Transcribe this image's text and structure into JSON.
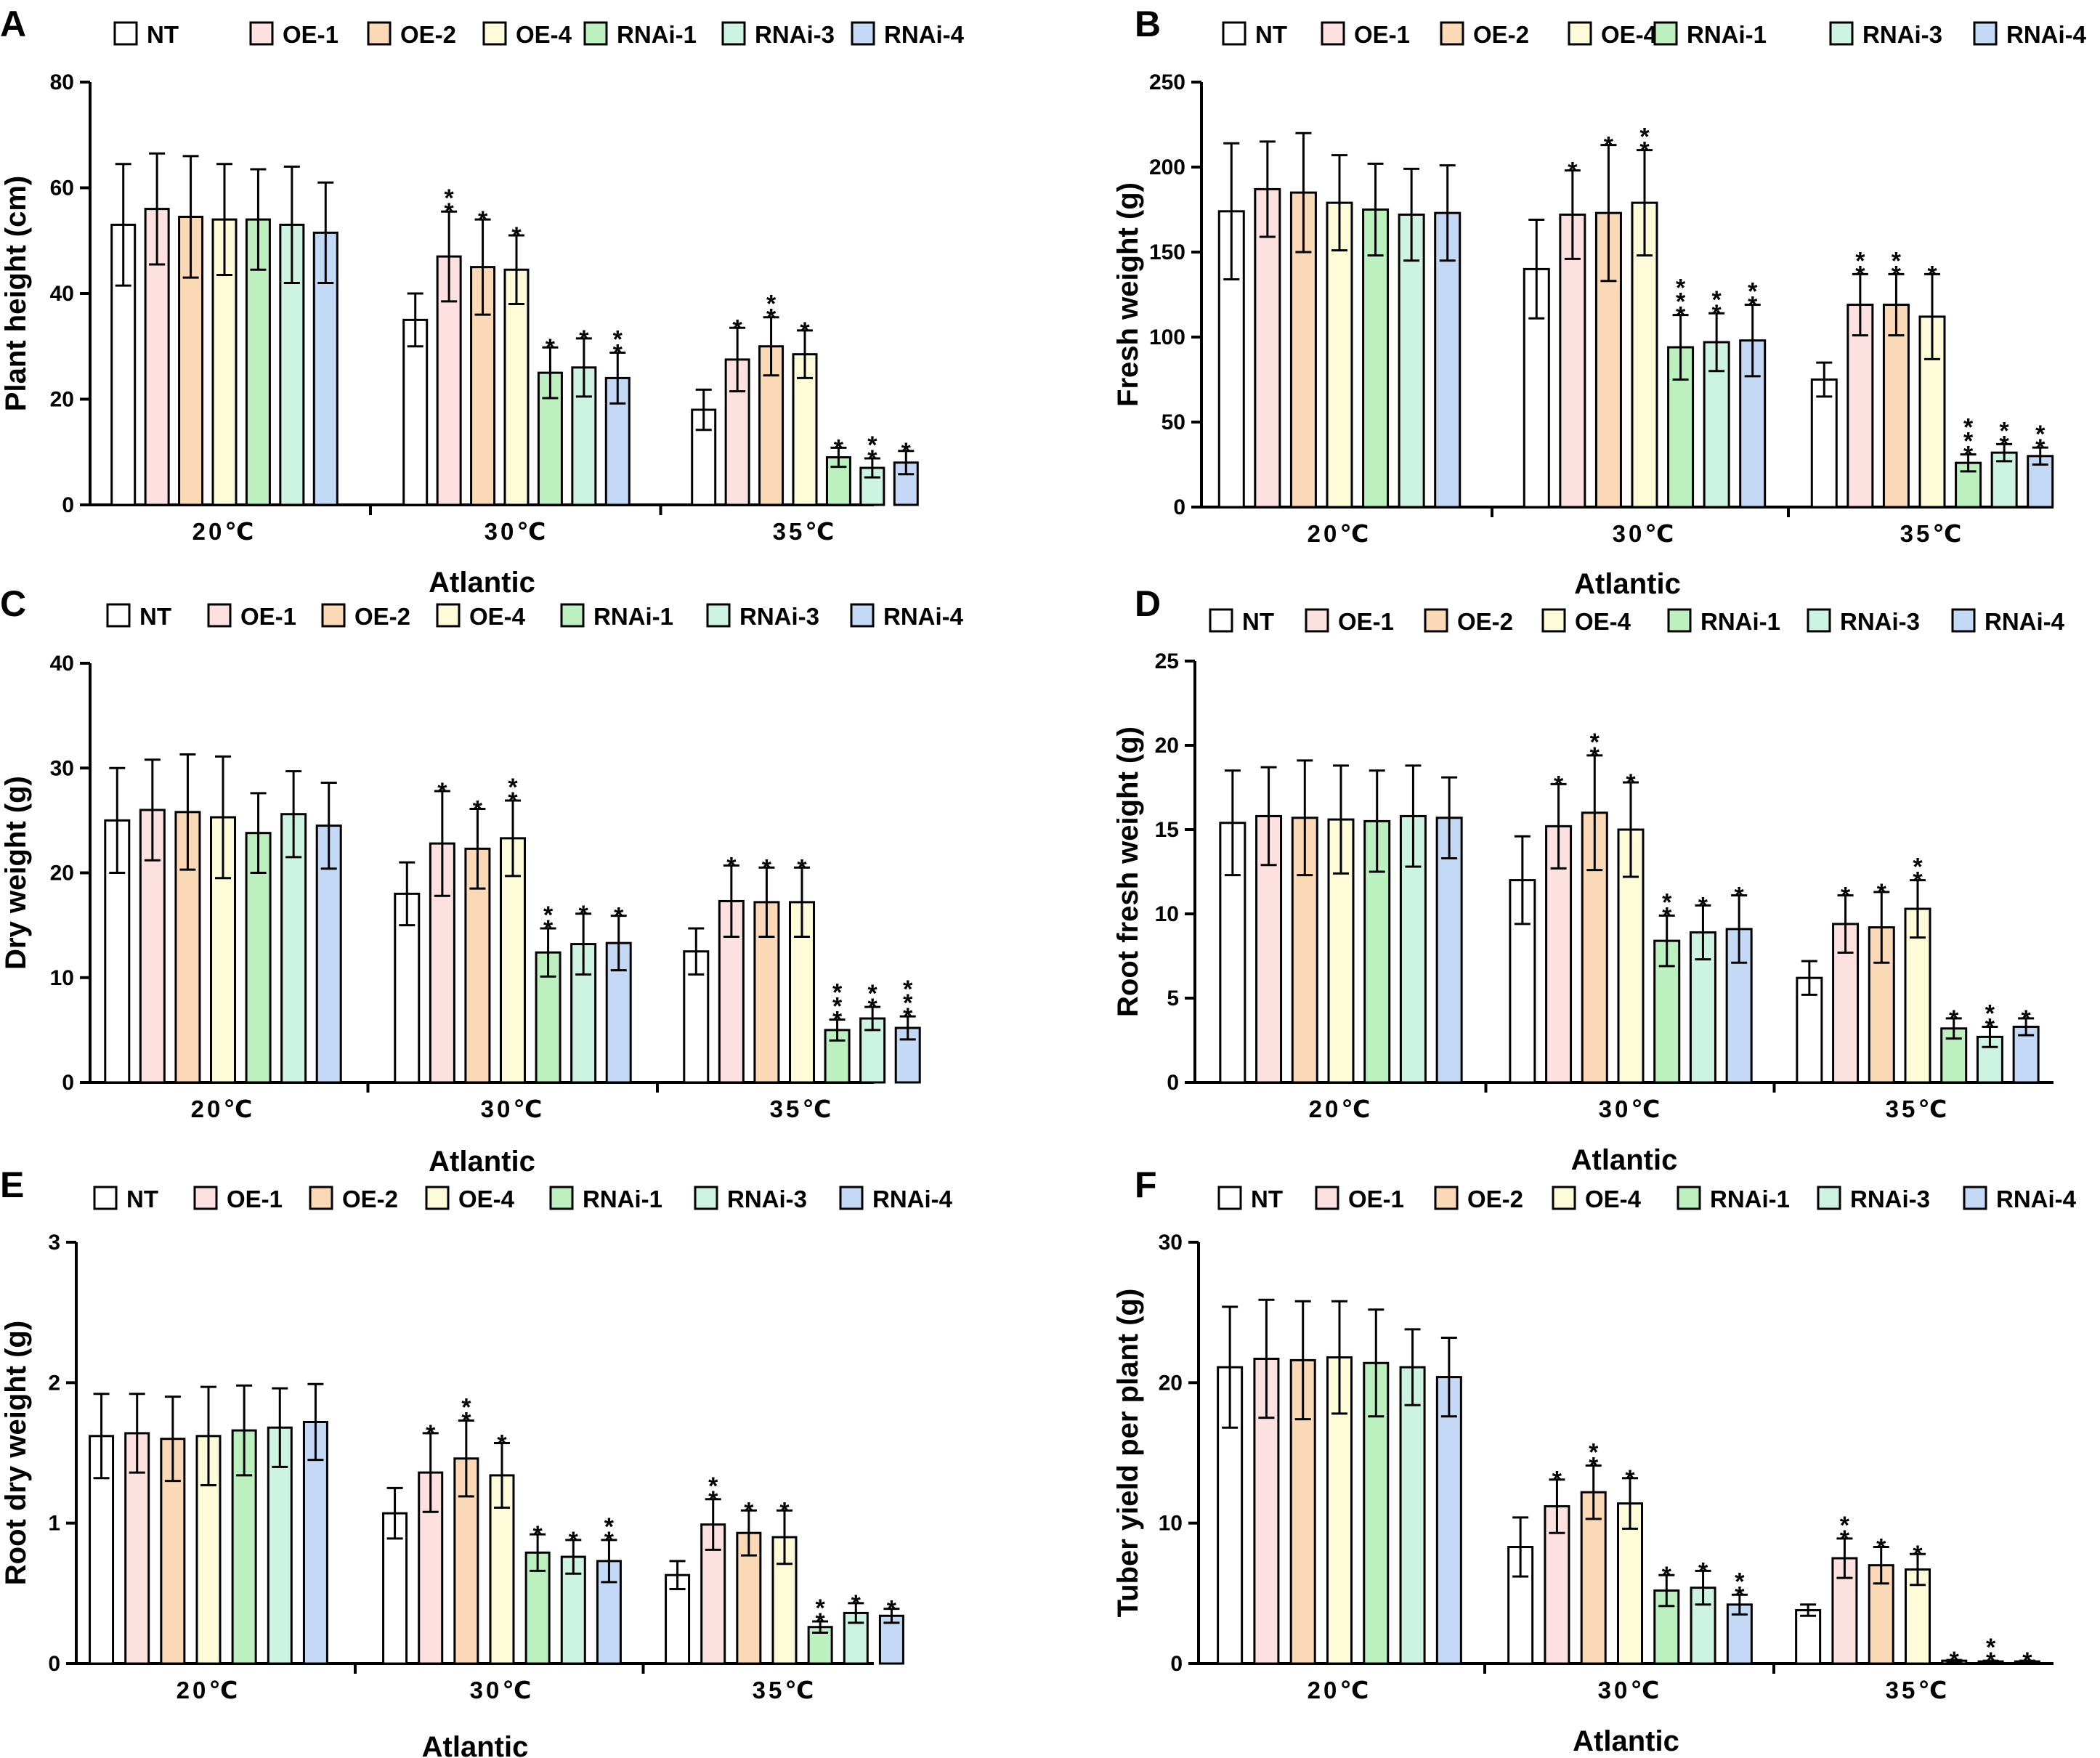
{
  "figure": {
    "groups": [
      "NT",
      "OE-1",
      "OE-2",
      "OE-4",
      "RNAi-1",
      "RNAi-3",
      "RNAi-4"
    ],
    "group_colors": [
      "#ffffff",
      "#fde0e0",
      "#fcd9b6",
      "#fdfbd8",
      "#bdf0bf",
      "#cdf3e3",
      "#c3d9f5"
    ]
  },
  "chart_data": [
    {
      "type": "bar",
      "panel": "A",
      "title": "",
      "xlabel": "Atlantic",
      "ylabel": "Plant height (cm)",
      "categories": [
        "20℃",
        "30℃",
        "35℃"
      ],
      "ylim": [
        0,
        80
      ],
      "yticks": [
        "0",
        "20",
        "40",
        "60",
        "80"
      ],
      "series": [
        {
          "name": "NT",
          "values": [
            53,
            35,
            18
          ],
          "errors": [
            11.5,
            5,
            3.8
          ],
          "stars": [
            "",
            "",
            ""
          ]
        },
        {
          "name": "OE-1",
          "values": [
            56,
            47,
            27.5
          ],
          "errors": [
            10.5,
            8.5,
            6
          ],
          "stars": [
            "",
            "**",
            "*"
          ]
        },
        {
          "name": "OE-2",
          "values": [
            54.5,
            45,
            30
          ],
          "errors": [
            11.5,
            9,
            5.5
          ],
          "stars": [
            "",
            "*",
            "**"
          ]
        },
        {
          "name": "OE-4",
          "values": [
            54,
            44.5,
            28.5
          ],
          "errors": [
            10.5,
            6.5,
            4.5
          ],
          "stars": [
            "",
            "*",
            "*"
          ]
        },
        {
          "name": "RNAi-1",
          "values": [
            54,
            25,
            9
          ],
          "errors": [
            9.5,
            4.8,
            1.8
          ],
          "stars": [
            "",
            "*",
            "*"
          ]
        },
        {
          "name": "RNAi-3",
          "values": [
            53,
            26,
            7
          ],
          "errors": [
            11,
            5.5,
            1.8
          ],
          "stars": [
            "",
            "*",
            "**"
          ]
        },
        {
          "name": "RNAi-4",
          "values": [
            51.5,
            24,
            8
          ],
          "errors": [
            9.5,
            4.8,
            2.2
          ],
          "stars": [
            "",
            "**",
            "*"
          ]
        }
      ]
    },
    {
      "type": "bar",
      "panel": "B",
      "title": "",
      "xlabel": "Atlantic",
      "ylabel": "Fresh weight (g)",
      "categories": [
        "20℃",
        "30℃",
        "35℃"
      ],
      "ylim": [
        0,
        250
      ],
      "yticks": [
        "0",
        "50",
        "100",
        "150",
        "200",
        "250"
      ],
      "series": [
        {
          "name": "NT",
          "values": [
            174,
            140,
            75
          ],
          "errors": [
            40,
            29,
            10
          ],
          "stars": [
            "",
            "",
            ""
          ]
        },
        {
          "name": "OE-1",
          "values": [
            187,
            172,
            119
          ],
          "errors": [
            28,
            26,
            18
          ],
          "stars": [
            "",
            "*",
            "**"
          ]
        },
        {
          "name": "OE-2",
          "values": [
            185,
            173,
            119
          ],
          "errors": [
            35,
            40,
            18
          ],
          "stars": [
            "",
            "*",
            "**"
          ]
        },
        {
          "name": "OE-4",
          "values": [
            179,
            179,
            112
          ],
          "errors": [
            28,
            31,
            25
          ],
          "stars": [
            "",
            "**",
            "*"
          ]
        },
        {
          "name": "RNAi-1",
          "values": [
            175,
            94,
            26
          ],
          "errors": [
            27,
            19,
            5
          ],
          "stars": [
            "",
            "***",
            "***"
          ]
        },
        {
          "name": "RNAi-3",
          "values": [
            172,
            97,
            32
          ],
          "errors": [
            27,
            17,
            5
          ],
          "stars": [
            "",
            "**",
            "**"
          ]
        },
        {
          "name": "RNAi-4",
          "values": [
            173,
            98,
            30
          ],
          "errors": [
            28,
            21,
            5
          ],
          "stars": [
            "",
            "**",
            "**"
          ]
        }
      ]
    },
    {
      "type": "bar",
      "panel": "C",
      "title": "",
      "xlabel": "Atlantic",
      "ylabel": "Dry weight (g)",
      "categories": [
        "20℃",
        "30℃",
        "35℃"
      ],
      "ylim": [
        0,
        40
      ],
      "yticks": [
        "0",
        "10",
        "20",
        "30",
        "40"
      ],
      "series": [
        {
          "name": "NT",
          "values": [
            25,
            18,
            12.5
          ],
          "errors": [
            5,
            3,
            2.2
          ],
          "stars": [
            "",
            "",
            ""
          ]
        },
        {
          "name": "OE-1",
          "values": [
            26,
            22.8,
            17.3
          ],
          "errors": [
            4.8,
            5,
            3.4
          ],
          "stars": [
            "",
            "*",
            "*"
          ]
        },
        {
          "name": "OE-2",
          "values": [
            25.8,
            22.3,
            17.2
          ],
          "errors": [
            5.5,
            3.8,
            3.3
          ],
          "stars": [
            "",
            "*",
            "*"
          ]
        },
        {
          "name": "OE-4",
          "values": [
            25.3,
            23.3,
            17.2
          ],
          "errors": [
            5.8,
            3.6,
            3.3
          ],
          "stars": [
            "",
            "**",
            "*"
          ]
        },
        {
          "name": "RNAi-1",
          "values": [
            23.8,
            12.4,
            5
          ],
          "errors": [
            3.8,
            2.3,
            1
          ],
          "stars": [
            "",
            "**",
            "***"
          ]
        },
        {
          "name": "RNAi-3",
          "values": [
            25.6,
            13.2,
            6.1
          ],
          "errors": [
            4.1,
            2.9,
            1.1
          ],
          "stars": [
            "",
            "*",
            "**"
          ]
        },
        {
          "name": "RNAi-4",
          "values": [
            24.5,
            13.3,
            5.2
          ],
          "errors": [
            4.1,
            2.6,
            1.1
          ],
          "stars": [
            "",
            "*",
            "***"
          ]
        }
      ]
    },
    {
      "type": "bar",
      "panel": "D",
      "title": "",
      "xlabel": "Atlantic",
      "ylabel": "Root fresh weight (g)",
      "categories": [
        "20℃",
        "30℃",
        "35℃"
      ],
      "ylim": [
        0,
        25
      ],
      "yticks": [
        "0",
        "5",
        "10",
        "15",
        "20",
        "25"
      ],
      "series": [
        {
          "name": "NT",
          "values": [
            15.4,
            12,
            6.2
          ],
          "errors": [
            3.1,
            2.6,
            1
          ],
          "stars": [
            "",
            "",
            ""
          ]
        },
        {
          "name": "OE-1",
          "values": [
            15.8,
            15.2,
            9.4
          ],
          "errors": [
            2.9,
            2.5,
            1.7
          ],
          "stars": [
            "",
            "*",
            "*"
          ]
        },
        {
          "name": "OE-2",
          "values": [
            15.7,
            16,
            9.2
          ],
          "errors": [
            3.4,
            3.4,
            2.1
          ],
          "stars": [
            "",
            "**",
            "*"
          ]
        },
        {
          "name": "OE-4",
          "values": [
            15.6,
            15,
            10.3
          ],
          "errors": [
            3.2,
            2.8,
            1.7
          ],
          "stars": [
            "",
            "*",
            "**"
          ]
        },
        {
          "name": "RNAi-1",
          "values": [
            15.5,
            8.4,
            3.2
          ],
          "errors": [
            3,
            1.5,
            0.6
          ],
          "stars": [
            "",
            "**",
            "*"
          ]
        },
        {
          "name": "RNAi-3",
          "values": [
            15.8,
            8.9,
            2.7
          ],
          "errors": [
            3,
            1.6,
            0.6
          ],
          "stars": [
            "",
            "*",
            "**"
          ]
        },
        {
          "name": "RNAi-4",
          "values": [
            15.7,
            9.1,
            3.3
          ],
          "errors": [
            2.4,
            2,
            0.5
          ],
          "stars": [
            "",
            "*",
            "*"
          ]
        }
      ]
    },
    {
      "type": "bar",
      "panel": "E",
      "title": "",
      "xlabel": "Atlantic",
      "ylabel": "Root dry weight (g)",
      "categories": [
        "20℃",
        "30℃",
        "35℃"
      ],
      "ylim": [
        0,
        3
      ],
      "yticks": [
        "0",
        "1",
        "2",
        "3"
      ],
      "series": [
        {
          "name": "NT",
          "values": [
            1.62,
            1.07,
            0.63
          ],
          "errors": [
            0.3,
            0.18,
            0.1
          ],
          "stars": [
            "",
            "",
            ""
          ]
        },
        {
          "name": "OE-1",
          "values": [
            1.64,
            1.36,
            0.99
          ],
          "errors": [
            0.28,
            0.28,
            0.18
          ],
          "stars": [
            "",
            "*",
            "**"
          ]
        },
        {
          "name": "OE-2",
          "values": [
            1.6,
            1.46,
            0.93
          ],
          "errors": [
            0.3,
            0.27,
            0.16
          ],
          "stars": [
            "",
            "**",
            "*"
          ]
        },
        {
          "name": "OE-4",
          "values": [
            1.62,
            1.34,
            0.9
          ],
          "errors": [
            0.35,
            0.23,
            0.19
          ],
          "stars": [
            "",
            "*",
            "*"
          ]
        },
        {
          "name": "RNAi-1",
          "values": [
            1.66,
            0.79,
            0.26
          ],
          "errors": [
            0.32,
            0.13,
            0.04
          ],
          "stars": [
            "",
            "*",
            "**"
          ]
        },
        {
          "name": "RNAi-3",
          "values": [
            1.68,
            0.76,
            0.36
          ],
          "errors": [
            0.28,
            0.12,
            0.07
          ],
          "stars": [
            "",
            "*",
            "*"
          ]
        },
        {
          "name": "RNAi-4",
          "values": [
            1.72,
            0.73,
            0.34
          ],
          "errors": [
            0.27,
            0.15,
            0.05
          ],
          "stars": [
            "",
            "**",
            "*"
          ]
        }
      ]
    },
    {
      "type": "bar",
      "panel": "F",
      "title": "",
      "xlabel": "Atlantic",
      "ylabel": "Tuber yield per plant (g)",
      "categories": [
        "20℃",
        "30℃",
        "35℃"
      ],
      "ylim": [
        0,
        30
      ],
      "yticks": [
        "0",
        "10",
        "20",
        "30"
      ],
      "series": [
        {
          "name": "NT",
          "values": [
            21.1,
            8.3,
            3.8
          ],
          "errors": [
            4.3,
            2.1,
            0.4
          ],
          "stars": [
            "",
            "",
            ""
          ]
        },
        {
          "name": "OE-1",
          "values": [
            21.7,
            11.2,
            7.5
          ],
          "errors": [
            4.2,
            1.9,
            1.4
          ],
          "stars": [
            "",
            "*",
            "**"
          ]
        },
        {
          "name": "OE-2",
          "values": [
            21.6,
            12.2,
            7
          ],
          "errors": [
            4.2,
            1.9,
            1.3
          ],
          "stars": [
            "",
            "**",
            "*"
          ]
        },
        {
          "name": "OE-4",
          "values": [
            21.8,
            11.4,
            6.7
          ],
          "errors": [
            4,
            1.8,
            1.1
          ],
          "stars": [
            "",
            "*",
            "*"
          ]
        },
        {
          "name": "RNAi-1",
          "values": [
            21.4,
            5.2,
            0.2
          ],
          "errors": [
            3.8,
            1.1,
            0.05
          ],
          "stars": [
            "",
            "*",
            "*"
          ]
        },
        {
          "name": "RNAi-3",
          "values": [
            21.1,
            5.4,
            0.15
          ],
          "errors": [
            2.7,
            1.2,
            0.05
          ],
          "stars": [
            "",
            "*",
            "**"
          ]
        },
        {
          "name": "RNAi-4",
          "values": [
            20.4,
            4.2,
            0.15
          ],
          "errors": [
            2.8,
            0.7,
            0.05
          ],
          "stars": [
            "",
            "**",
            "*"
          ]
        }
      ]
    }
  ]
}
